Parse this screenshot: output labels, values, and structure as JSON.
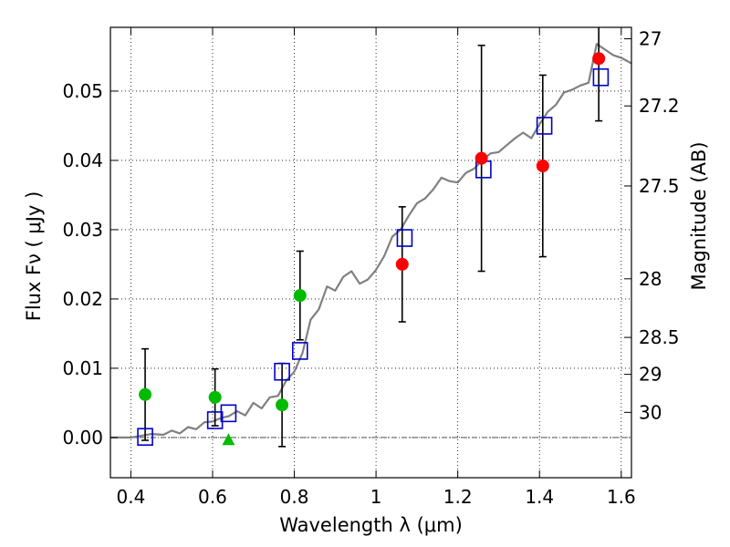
{
  "chart_data": {
    "type": "scatter",
    "xlabel": "Wavelength  λ (μm)",
    "ylabel": "Flux  Fν  ( μJy )",
    "right_ylabel": "Magnitude (AB)",
    "xlim": [
      0.35,
      1.625
    ],
    "ylim": [
      -0.0058,
      0.0592
    ],
    "grid": true,
    "x_ticks": [
      0.4,
      0.6,
      0.8,
      1.0,
      1.2,
      1.4,
      1.6
    ],
    "x_tick_labels": [
      "0.4",
      "0.6",
      "0.8",
      "1",
      "1.2",
      "1.4",
      "1.6"
    ],
    "y_ticks": [
      0.0,
      0.01,
      0.02,
      0.03,
      0.04,
      0.05
    ],
    "y_tick_labels": [
      "0.00",
      "0.01",
      "0.02",
      "0.03",
      "0.04",
      "0.05"
    ],
    "mag_ticks": [
      {
        "label": "27",
        "flux": 0.05755
      },
      {
        "label": "27.2",
        "flux": 0.04786
      },
      {
        "label": "27.5",
        "flux": 0.03631
      },
      {
        "label": "28",
        "flux": 0.02291
      },
      {
        "label": "28.5",
        "flux": 0.01445
      },
      {
        "label": "29",
        "flux": 0.00912
      },
      {
        "label": "30",
        "flux": 0.00363
      }
    ],
    "colors": {
      "model": "#808080",
      "green": "#00bb00",
      "red": "#ff0000",
      "blue_square": "#0000cc",
      "errorbar": "#000000"
    },
    "model_sed": {
      "x": [
        0.35,
        0.4,
        0.45,
        0.48,
        0.5,
        0.52,
        0.54,
        0.56,
        0.58,
        0.6,
        0.62,
        0.64,
        0.66,
        0.68,
        0.7,
        0.72,
        0.74,
        0.76,
        0.78,
        0.8,
        0.82,
        0.84,
        0.86,
        0.88,
        0.9,
        0.92,
        0.94,
        0.96,
        0.98,
        1.0,
        1.02,
        1.04,
        1.06,
        1.08,
        1.1,
        1.12,
        1.14,
        1.16,
        1.18,
        1.2,
        1.22,
        1.24,
        1.26,
        1.28,
        1.3,
        1.32,
        1.34,
        1.36,
        1.38,
        1.4,
        1.42,
        1.44,
        1.46,
        1.48,
        1.5,
        1.52,
        1.54,
        1.56,
        1.58,
        1.6,
        1.625
      ],
      "y": [
        0.0,
        0.0,
        0.0005,
        0.0004,
        0.001,
        0.0006,
        0.0015,
        0.0012,
        0.0022,
        0.0023,
        0.0028,
        0.0031,
        0.0038,
        0.0032,
        0.005,
        0.0042,
        0.0058,
        0.006,
        0.0082,
        0.0095,
        0.0122,
        0.017,
        0.0185,
        0.0218,
        0.0212,
        0.0232,
        0.024,
        0.0222,
        0.0228,
        0.0242,
        0.0262,
        0.029,
        0.03,
        0.032,
        0.0338,
        0.0345,
        0.0358,
        0.0375,
        0.037,
        0.0368,
        0.0382,
        0.0388,
        0.04,
        0.041,
        0.0412,
        0.0422,
        0.0432,
        0.044,
        0.0432,
        0.0452,
        0.047,
        0.048,
        0.0498,
        0.0502,
        0.0508,
        0.0512,
        0.0568,
        0.056,
        0.0552,
        0.0548,
        0.054
      ]
    },
    "green_points": [
      {
        "x": 0.435,
        "y": 0.0062,
        "err": 0.0066
      },
      {
        "x": 0.606,
        "y": 0.0058,
        "err": 0.0041
      },
      {
        "x": 0.77,
        "y": 0.0047,
        "err": 0.006
      },
      {
        "x": 0.814,
        "y": 0.0205,
        "err": 0.0064
      }
    ],
    "green_triangle": {
      "x": 0.639,
      "y": -0.0003
    },
    "red_points": [
      {
        "x": 1.064,
        "y": 0.025,
        "err": 0.0083
      },
      {
        "x": 1.258,
        "y": 0.0403,
        "err": 0.0163
      },
      {
        "x": 1.408,
        "y": 0.0392,
        "err": 0.0131
      },
      {
        "x": 1.545,
        "y": 0.0547,
        "err": 0.009
      }
    ],
    "blue_squares": [
      {
        "x": 0.435,
        "y": 0.0001
      },
      {
        "x": 0.606,
        "y": 0.0025
      },
      {
        "x": 0.639,
        "y": 0.0035
      },
      {
        "x": 0.77,
        "y": 0.0095
      },
      {
        "x": 0.814,
        "y": 0.0125
      },
      {
        "x": 1.07,
        "y": 0.0288
      },
      {
        "x": 1.263,
        "y": 0.0387
      },
      {
        "x": 1.412,
        "y": 0.045
      },
      {
        "x": 1.55,
        "y": 0.052
      }
    ]
  }
}
